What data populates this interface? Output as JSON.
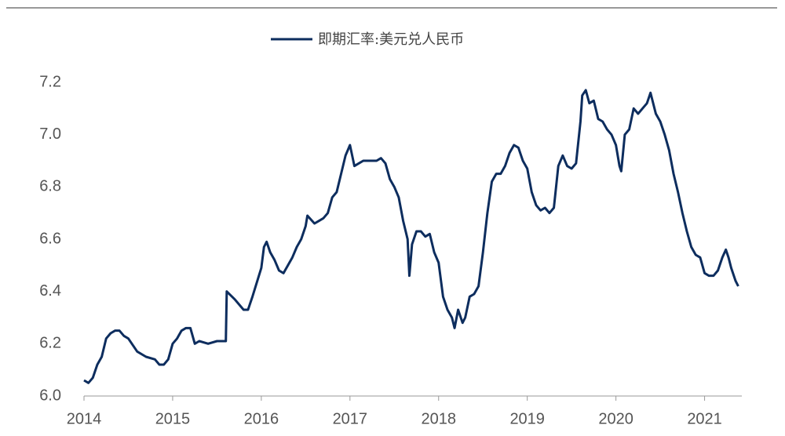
{
  "chart_data": {
    "type": "line",
    "x": [
      2014.0,
      2014.05,
      2014.1,
      2014.15,
      2014.2,
      2014.25,
      2014.3,
      2014.35,
      2014.4,
      2014.45,
      2014.5,
      2014.6,
      2014.7,
      2014.8,
      2014.85,
      2014.9,
      2014.95,
      2015.0,
      2015.05,
      2015.1,
      2015.15,
      2015.2,
      2015.25,
      2015.3,
      2015.4,
      2015.5,
      2015.6,
      2015.61,
      2015.7,
      2015.8,
      2015.85,
      2015.9,
      2016.0,
      2016.03,
      2016.06,
      2016.1,
      2016.15,
      2016.2,
      2016.25,
      2016.3,
      2016.35,
      2016.4,
      2016.45,
      2016.5,
      2016.52,
      2016.6,
      2016.65,
      2016.7,
      2016.75,
      2016.8,
      2016.85,
      2016.9,
      2016.95,
      2017.0,
      2017.05,
      2017.1,
      2017.15,
      2017.2,
      2017.3,
      2017.35,
      2017.4,
      2017.45,
      2017.5,
      2017.55,
      2017.6,
      2017.65,
      2017.67,
      2017.7,
      2017.75,
      2017.8,
      2017.85,
      2017.9,
      2017.95,
      2018.0,
      2018.05,
      2018.1,
      2018.15,
      2018.18,
      2018.22,
      2018.27,
      2018.3,
      2018.35,
      2018.4,
      2018.45,
      2018.5,
      2018.55,
      2018.6,
      2018.65,
      2018.7,
      2018.75,
      2018.8,
      2018.85,
      2018.9,
      2018.95,
      2019.0,
      2019.05,
      2019.1,
      2019.15,
      2019.2,
      2019.25,
      2019.3,
      2019.35,
      2019.4,
      2019.45,
      2019.5,
      2019.55,
      2019.6,
      2019.62,
      2019.66,
      2019.7,
      2019.75,
      2019.8,
      2019.85,
      2019.9,
      2019.95,
      2020.0,
      2020.04,
      2020.06,
      2020.1,
      2020.15,
      2020.2,
      2020.25,
      2020.3,
      2020.35,
      2020.39,
      2020.45,
      2020.5,
      2020.55,
      2020.6,
      2020.65,
      2020.7,
      2020.75,
      2020.8,
      2020.85,
      2020.9,
      2020.95,
      2021.0,
      2021.05,
      2021.1,
      2021.15,
      2021.2,
      2021.24,
      2021.27,
      2021.3,
      2021.35,
      2021.38
    ],
    "series": [
      {
        "name": "即期汇率:美元兑人民币",
        "color": "#0d2d5e",
        "values": [
          6.06,
          6.05,
          6.07,
          6.12,
          6.15,
          6.22,
          6.24,
          6.25,
          6.25,
          6.23,
          6.22,
          6.17,
          6.15,
          6.14,
          6.12,
          6.12,
          6.14,
          6.2,
          6.22,
          6.25,
          6.26,
          6.26,
          6.2,
          6.21,
          6.2,
          6.21,
          6.21,
          6.4,
          6.37,
          6.33,
          6.33,
          6.38,
          6.49,
          6.57,
          6.59,
          6.55,
          6.52,
          6.48,
          6.47,
          6.5,
          6.53,
          6.57,
          6.6,
          6.65,
          6.69,
          6.66,
          6.67,
          6.68,
          6.7,
          6.76,
          6.78,
          6.85,
          6.92,
          6.96,
          6.88,
          6.89,
          6.9,
          6.9,
          6.9,
          6.91,
          6.89,
          6.83,
          6.8,
          6.76,
          6.67,
          6.6,
          6.46,
          6.58,
          6.63,
          6.63,
          6.61,
          6.62,
          6.55,
          6.51,
          6.38,
          6.33,
          6.3,
          6.26,
          6.33,
          6.28,
          6.3,
          6.38,
          6.39,
          6.42,
          6.55,
          6.7,
          6.82,
          6.85,
          6.85,
          6.88,
          6.93,
          6.96,
          6.95,
          6.9,
          6.87,
          6.78,
          6.73,
          6.71,
          6.72,
          6.7,
          6.72,
          6.88,
          6.92,
          6.88,
          6.87,
          6.89,
          7.05,
          7.15,
          7.17,
          7.12,
          7.13,
          7.06,
          7.05,
          7.02,
          7.0,
          6.96,
          6.88,
          6.86,
          7.0,
          7.02,
          7.1,
          7.08,
          7.1,
          7.12,
          7.16,
          7.08,
          7.05,
          7.0,
          6.94,
          6.85,
          6.78,
          6.7,
          6.63,
          6.57,
          6.54,
          6.53,
          6.47,
          6.46,
          6.46,
          6.48,
          6.53,
          6.56,
          6.53,
          6.49,
          6.44,
          6.42
        ]
      }
    ],
    "xlim": [
      2014,
      2021.42
    ],
    "xticks": [
      2014,
      2015,
      2016,
      2017,
      2018,
      2019,
      2020,
      2021
    ],
    "ylim": [
      6.0,
      7.2
    ],
    "yticks": [
      {
        "value": 6.0,
        "label": "6.0"
      },
      6.2,
      6.4,
      6.6,
      6.8,
      {
        "value": 7.0,
        "label": "7.0"
      },
      7.2
    ]
  }
}
